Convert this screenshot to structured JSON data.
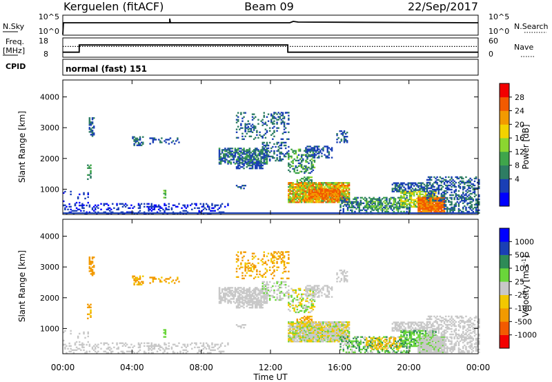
{
  "header": {
    "station": "Kerguelen (fitACF)",
    "beam": "Beam 09",
    "date": "22/Sep/2017"
  },
  "top_panels": {
    "nsky_label": "N.Sky",
    "nsky_ticks": [
      "10^5",
      "10^0"
    ],
    "nsearch_label": "N.Search",
    "nsearch_ticks": [
      "10^5",
      "10^0"
    ],
    "freq_label_1": "Freq.",
    "freq_label_2": "[MHz]",
    "freq_ticks": [
      "18",
      "8"
    ],
    "nave_label": "Nave",
    "nave_ticks": [
      "60",
      "0"
    ],
    "cpid_label": "CPID",
    "cpid_text": "normal (fast) 151",
    "freq_series": {
      "x_hours": [
        0,
        0.95,
        0.95,
        13.0,
        13.0,
        24
      ],
      "values_mhz": [
        10.2,
        10.2,
        14.6,
        14.6,
        10.2,
        10.2
      ]
    },
    "nave_series": {
      "x_hours": [
        0,
        24
      ],
      "values": [
        34,
        34
      ]
    }
  },
  "chart_data": [
    {
      "type": "heatmap",
      "name": "power",
      "ylabel": "Slant Range [km]",
      "xlabel": "",
      "ylim": [
        180,
        4550
      ],
      "yticks": [
        "4000",
        "3000",
        "2000",
        "1000"
      ],
      "colorbar_label": "Power [dB]",
      "colorbar_ticks": [
        "28",
        "24",
        "20",
        "16",
        "12",
        "8",
        "4"
      ],
      "colorbar_range": [
        0,
        32
      ],
      "colors": [
        "#0000ff",
        "#1a3fb5",
        "#2e7d63",
        "#3fa54b",
        "#8bd630",
        "#f2d200",
        "#f29a00",
        "#f25a00",
        "#f20000"
      ]
    },
    {
      "type": "heatmap",
      "name": "velocity",
      "ylabel": "Slant Range [km]",
      "xlabel": "Time UT",
      "ylim": [
        180,
        4550
      ],
      "yticks": [
        "4000",
        "3000",
        "2000",
        "1000"
      ],
      "xticks": [
        "00:00",
        "04:00",
        "08:00",
        "12:00",
        "16:00",
        "20:00",
        "00:00"
      ],
      "colorbar_label": "Velocity [m s^-1]",
      "colorbar_ticks": [
        "1000",
        "500",
        "100",
        "25",
        "-25",
        "-100",
        "-500",
        "-1000"
      ],
      "colors": [
        "#0000ff",
        "#1a3fb5",
        "#2e8b57",
        "#6ad63a",
        "#c8c8c8",
        "#f2c800",
        "#f29a00",
        "#f25a00",
        "#f20000"
      ]
    }
  ]
}
